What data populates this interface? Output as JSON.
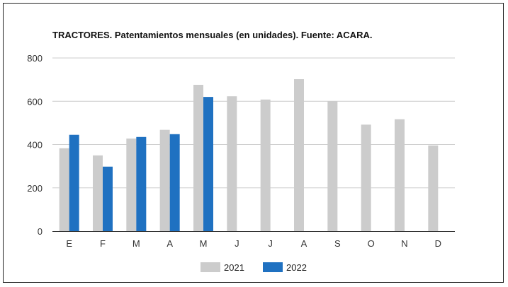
{
  "chart_data": {
    "type": "bar",
    "title": "TRACTORES. Patentamientos mensuales (en unidades). Fuente: ACARA.",
    "categories": [
      "E",
      "F",
      "M",
      "A",
      "M",
      "J",
      "J",
      "A",
      "S",
      "O",
      "N",
      "D"
    ],
    "series": [
      {
        "name": "2021",
        "color": "#cccccc",
        "values": [
          383,
          350,
          428,
          468,
          676,
          623,
          608,
          702,
          600,
          492,
          517,
          396
        ]
      },
      {
        "name": "2022",
        "color": "#1f71c1",
        "values": [
          445,
          298,
          435,
          448,
          620,
          null,
          null,
          null,
          null,
          null,
          null,
          null
        ]
      }
    ],
    "ylim": [
      0,
      800
    ],
    "yticks": [
      "0",
      "200",
      "400",
      "600",
      "800"
    ],
    "grid": true,
    "legend_position": "bottom"
  }
}
